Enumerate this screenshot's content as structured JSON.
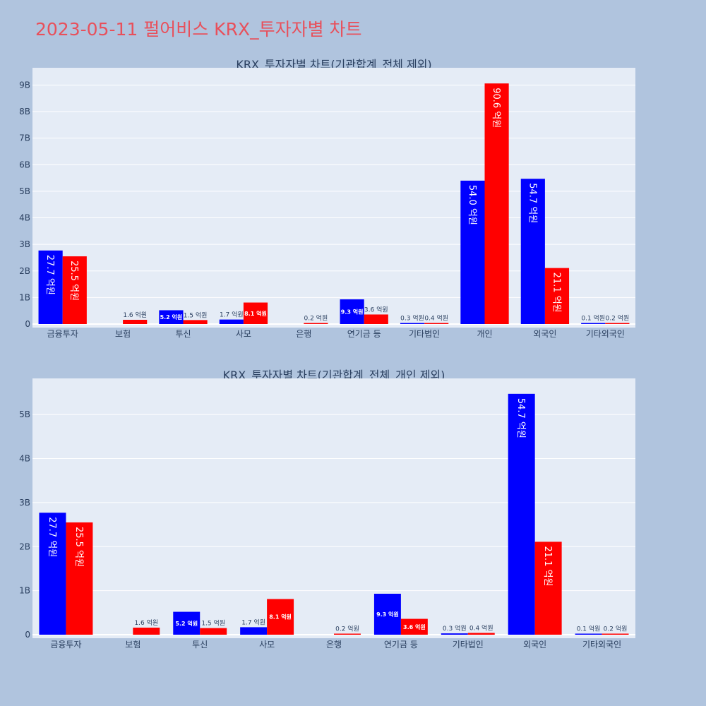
{
  "page_title": "2023-05-11 펄어비스 KRX_투자자별 차트",
  "colors": {
    "buy": "#0000ff",
    "sell": "#ff0000",
    "plot_bg": "#e5ecf6",
    "page_bg": "#b0c4de"
  },
  "chart_data": [
    {
      "type": "bar",
      "title": "KRX_투자자별 차트(기관합계_전체 제외)",
      "categories": [
        "금융투자",
        "보험",
        "투신",
        "사모",
        "은행",
        "연기금 등",
        "기타법인",
        "개인",
        "외국인",
        "기타외국인"
      ],
      "series": [
        {
          "values": [
            2770000000,
            0,
            520000000,
            170000000,
            0,
            930000000,
            30000000,
            5400000000,
            5470000000,
            10000000
          ],
          "labels": [
            "27.7 억원",
            "",
            "5.2 억원",
            "1.7 억원",
            "",
            "9.3 억원",
            "0.3 억원",
            "54.0 억원",
            "54.7 억원",
            "0.1 억원"
          ]
        },
        {
          "values": [
            2550000000,
            160000000,
            150000000,
            810000000,
            20000000,
            360000000,
            40000000,
            9060000000,
            2110000000,
            20000000
          ],
          "labels": [
            "25.5 억원",
            "1.6 억원",
            "1.5 억원",
            "8.1 억원",
            "0.2 억원",
            "3.6 억원",
            "0.4 억원",
            "90.6 억원",
            "21.1 억원",
            "0.2 억원"
          ]
        }
      ],
      "ylim": [
        0,
        9650000000
      ],
      "yticks": [
        0,
        1000000000,
        2000000000,
        3000000000,
        4000000000,
        5000000000,
        6000000000,
        7000000000,
        8000000000,
        9000000000
      ],
      "ytick_labels": [
        "0",
        "1B",
        "2B",
        "3B",
        "4B",
        "5B",
        "6B",
        "7B",
        "8B",
        "9B"
      ],
      "grid": true
    },
    {
      "type": "bar",
      "title": "KRX_투자자별 차트(기관합계_전체_개인 제외)",
      "categories": [
        "금융투자",
        "보험",
        "투신",
        "사모",
        "은행",
        "연기금 등",
        "기타법인",
        "외국인",
        "기타외국인"
      ],
      "series": [
        {
          "values": [
            2770000000,
            0,
            520000000,
            170000000,
            0,
            930000000,
            30000000,
            5470000000,
            10000000
          ],
          "labels": [
            "27.7 억원",
            "",
            "5.2 억원",
            "1.7 억원",
            "",
            "9.3 억원",
            "0.3 억원",
            "54.7 억원",
            "0.1 억원"
          ]
        },
        {
          "values": [
            2550000000,
            160000000,
            150000000,
            810000000,
            20000000,
            360000000,
            40000000,
            2110000000,
            20000000
          ],
          "labels": [
            "25.5 억원",
            "1.6 억원",
            "1.5 억원",
            "8.1 억원",
            "0.2 억원",
            "3.6 억원",
            "0.4 억원",
            "21.1 억원",
            "0.2 억원"
          ]
        }
      ],
      "ylim": [
        0,
        5820000000
      ],
      "yticks": [
        0,
        1000000000,
        2000000000,
        3000000000,
        4000000000,
        5000000000
      ],
      "ytick_labels": [
        "0",
        "1B",
        "2B",
        "3B",
        "4B",
        "5B"
      ],
      "grid": true
    }
  ]
}
